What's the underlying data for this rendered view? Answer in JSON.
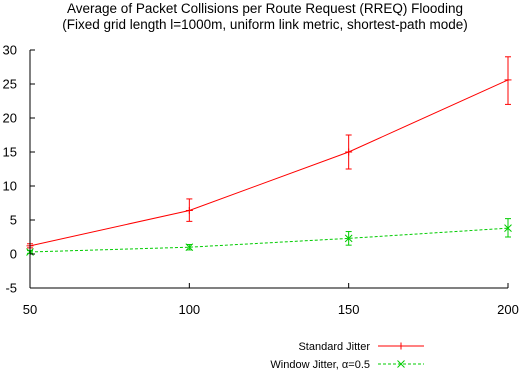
{
  "chart_data": {
    "type": "line",
    "title": "Average of Packet Collisions per Route Request (RREQ) Flooding",
    "subtitle": "(Fixed grid length l=1000m, uniform link metric, shortest-path mode)",
    "xlabel": "",
    "ylabel": "",
    "x": [
      50,
      100,
      150,
      200
    ],
    "xticks": [
      "50",
      "100",
      "150",
      "200"
    ],
    "yticks": [
      "-5",
      "0",
      "5",
      "10",
      "15",
      "20",
      "25",
      "30"
    ],
    "xlim": [
      50,
      200
    ],
    "ylim": [
      -5,
      30
    ],
    "grid": false,
    "legend_position": "bottom-right",
    "series": [
      {
        "name": "Standard Jitter",
        "color": "#ff0000",
        "line_style": "solid",
        "marker": "plus",
        "values": [
          1.2,
          6.4,
          15.0,
          25.6
        ],
        "error_low": [
          0.9,
          4.8,
          12.5,
          22.0
        ],
        "error_high": [
          1.5,
          8.1,
          17.5,
          29.0
        ]
      },
      {
        "name": "Window Jitter, α=0.5",
        "color": "#00cc00",
        "line_style": "dashed",
        "marker": "x",
        "values": [
          0.3,
          1.0,
          2.3,
          3.8
        ],
        "error_low": [
          0.1,
          0.6,
          1.3,
          2.5
        ],
        "error_high": [
          0.5,
          1.4,
          3.3,
          5.2
        ]
      }
    ]
  }
}
